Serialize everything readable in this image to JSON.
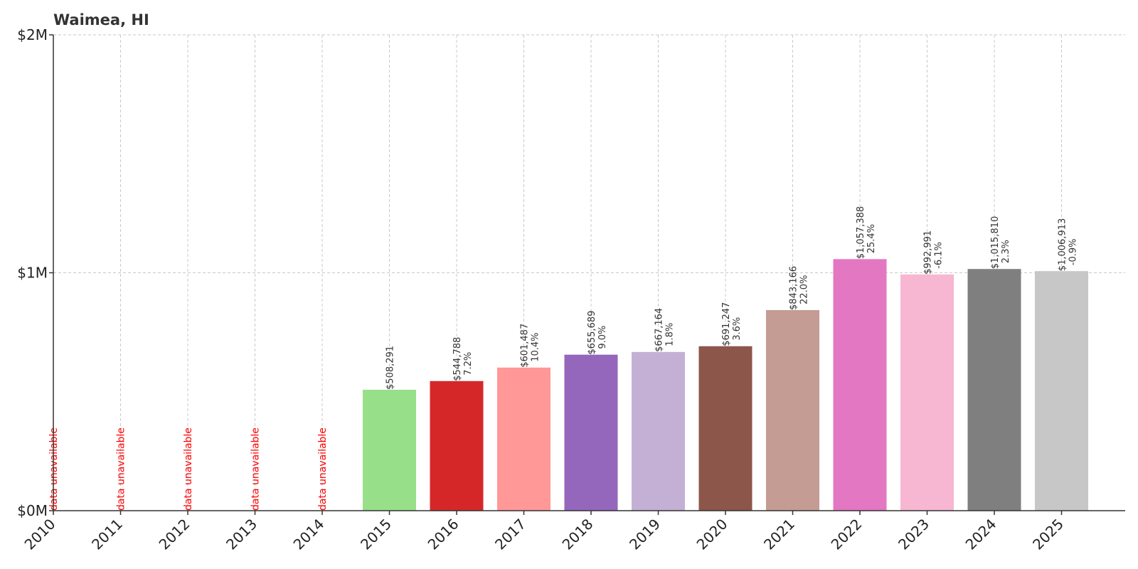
{
  "chart_data": {
    "type": "bar",
    "title": "Waimea, HI",
    "xlabel": "",
    "ylabel": "",
    "ylim": [
      0,
      2000000
    ],
    "yticks": [
      {
        "value": 0,
        "label": "$0M"
      },
      {
        "value": 1000000,
        "label": "$1M"
      },
      {
        "value": 2000000,
        "label": "$2M"
      }
    ],
    "grid": true,
    "unavailable_label": "data unavailable",
    "categories": [
      "2010",
      "2011",
      "2012",
      "2013",
      "2014",
      "2015",
      "2016",
      "2017",
      "2018",
      "2019",
      "2020",
      "2021",
      "2022",
      "2023",
      "2024",
      "2025"
    ],
    "values": [
      null,
      null,
      null,
      null,
      null,
      508291,
      544788,
      601487,
      655689,
      667164,
      691247,
      843166,
      1057388,
      992991,
      1015810,
      1006913
    ],
    "value_labels": [
      null,
      null,
      null,
      null,
      null,
      "$508,291",
      "$544,788",
      "$601,487",
      "$655,689",
      "$667,164",
      "$691,247",
      "$843,166",
      "$1,057,388",
      "$992,991",
      "$1,015,810",
      "$1,006,913"
    ],
    "change_labels": [
      null,
      null,
      null,
      null,
      null,
      null,
      "7.2%",
      "10.4%",
      "9.0%",
      "1.8%",
      "3.6%",
      "22.0%",
      "25.4%",
      "-6.1%",
      "2.3%",
      "-0.9%"
    ],
    "colors": [
      "#1f77b4",
      "#aec7e8",
      "#ff7f0e",
      "#ffbb78",
      "#2ca02c",
      "#98df8a",
      "#d62728",
      "#ff9896",
      "#9467bd",
      "#c5b0d5",
      "#8c564b",
      "#c49c94",
      "#e377c2",
      "#f7b6d2",
      "#7f7f7f",
      "#c7c7c7"
    ],
    "unavailable_color": "#ff0000"
  }
}
